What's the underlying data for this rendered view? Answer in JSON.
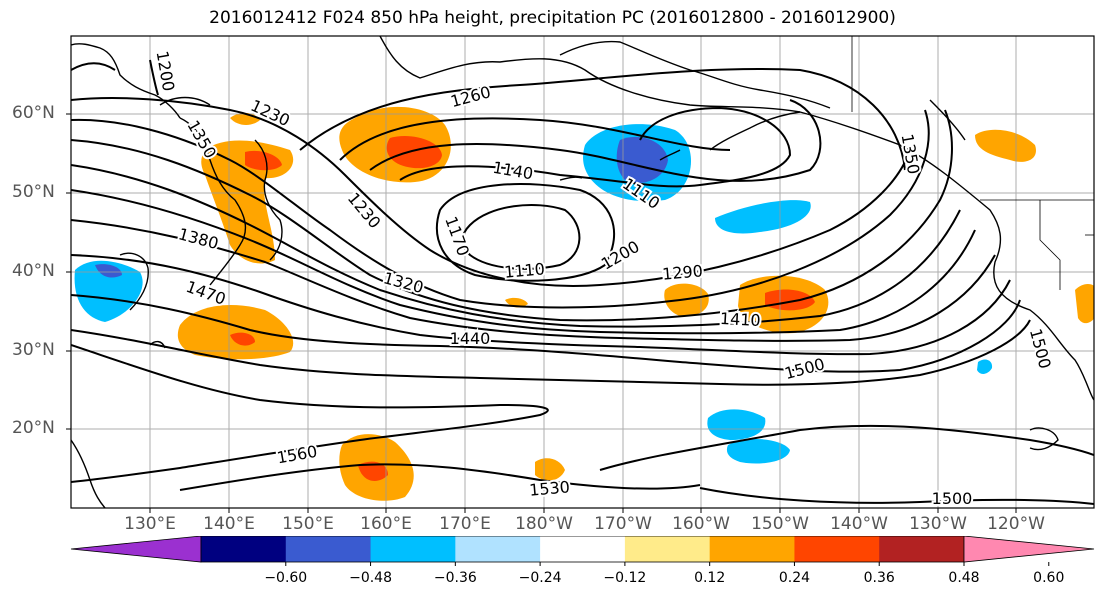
{
  "title": "2016012412 F024 850 hPa height, precipitation PC (2016012800 - 2016012900)",
  "lat_labels": [
    "60°N",
    "50°N",
    "40°N",
    "30°N",
    "20°N"
  ],
  "lon_labels": [
    "130°E",
    "140°E",
    "150°E",
    "160°E",
    "170°E",
    "180°W",
    "170°W",
    "160°W",
    "150°W",
    "140°W",
    "130°W",
    "120°W"
  ],
  "contour_labels": [
    "1200",
    "1230",
    "1260",
    "1140",
    "1110",
    "1230",
    "1170",
    "1380",
    "1110",
    "1200",
    "1290",
    "1320",
    "1470",
    "1410",
    "1440",
    "1500",
    "1560",
    "1530",
    "1500",
    "1500",
    "1350",
    "1350"
  ],
  "colorbar": {
    "colors": [
      "#9b30d0",
      "#000080",
      "#3a5bd0",
      "#00bfff",
      "#b0e2ff",
      "#ffffff",
      "#ffeb8a",
      "#ffa500",
      "#ff4500",
      "#b22222",
      "#ff88b0"
    ],
    "tick_labels": [
      "-0.60",
      "-0.48",
      "-0.36",
      "-0.24",
      "-0.12",
      "0.12",
      "0.24",
      "0.36",
      "0.48",
      "0.60"
    ]
  },
  "icons": [
    "colorbar-min-extend-arrow",
    "colorbar-max-extend-arrow"
  ]
}
